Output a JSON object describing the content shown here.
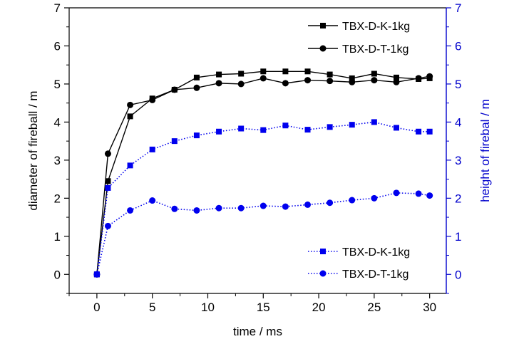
{
  "chart_data": {
    "type": "line",
    "title": "",
    "xlabel": "time / ms",
    "ylabel_left": "diameter of fireball / m",
    "ylabel_right": "height of firebal / m",
    "xlim": [
      -2.5,
      31.5
    ],
    "ylim_left": [
      -0.5,
      7
    ],
    "ylim_right": [
      -0.5,
      7
    ],
    "x_ticks": [
      0,
      5,
      10,
      15,
      20,
      25,
      30
    ],
    "y_ticks_left": [
      0,
      1,
      2,
      3,
      4,
      5,
      6,
      7
    ],
    "y_ticks_right": [
      0,
      1,
      2,
      3,
      4,
      5,
      6,
      7
    ],
    "grid": false,
    "colors": {
      "left_axis": "#000000",
      "right_axis": "#0000cc",
      "diameter": "#000000",
      "height": "#0000ee"
    },
    "series": [
      {
        "name": "TBX-D-K-1kg",
        "axis": "left",
        "marker": "square",
        "line": "solid",
        "color": "#000000",
        "x": [
          0,
          1,
          3,
          5,
          7,
          9,
          11,
          13,
          15,
          17,
          19,
          21,
          23,
          25,
          27,
          29,
          30
        ],
        "y": [
          0,
          2.45,
          4.15,
          4.62,
          4.85,
          5.17,
          5.25,
          5.27,
          5.33,
          5.33,
          5.33,
          5.25,
          5.15,
          5.27,
          5.17,
          5.13,
          5.15
        ]
      },
      {
        "name": "TBX-D-T-1kg",
        "axis": "left",
        "marker": "circle",
        "line": "solid",
        "color": "#000000",
        "x": [
          0,
          1,
          3,
          5,
          7,
          9,
          11,
          13,
          15,
          17,
          19,
          21,
          23,
          25,
          27,
          29,
          30
        ],
        "y": [
          0,
          3.17,
          4.45,
          4.58,
          4.85,
          4.9,
          5.02,
          5.0,
          5.15,
          5.02,
          5.1,
          5.08,
          5.05,
          5.1,
          5.05,
          5.15,
          5.2
        ]
      },
      {
        "name": "TBX-D-K-1kg",
        "axis": "right",
        "marker": "square",
        "line": "dotted",
        "color": "#0000ee",
        "x": [
          0,
          1,
          3,
          5,
          7,
          9,
          11,
          13,
          15,
          17,
          19,
          21,
          23,
          25,
          27,
          29,
          30
        ],
        "y": [
          0,
          2.27,
          2.86,
          3.28,
          3.5,
          3.65,
          3.75,
          3.83,
          3.79,
          3.91,
          3.8,
          3.87,
          3.93,
          4.0,
          3.85,
          3.75,
          3.75
        ]
      },
      {
        "name": "TBX-D-T-1kg",
        "axis": "right",
        "marker": "circle",
        "line": "dotted",
        "color": "#0000ee",
        "x": [
          0,
          1,
          3,
          5,
          7,
          9,
          11,
          13,
          15,
          17,
          19,
          21,
          23,
          25,
          27,
          29,
          30
        ],
        "y": [
          0,
          1.27,
          1.68,
          1.94,
          1.72,
          1.68,
          1.74,
          1.74,
          1.8,
          1.78,
          1.83,
          1.88,
          1.95,
          2.0,
          2.14,
          2.12,
          2.07
        ]
      }
    ],
    "legends": [
      {
        "placement": "top-right",
        "series": [
          0,
          1
        ]
      },
      {
        "placement": "bottom-right",
        "series": [
          2,
          3
        ]
      }
    ]
  }
}
